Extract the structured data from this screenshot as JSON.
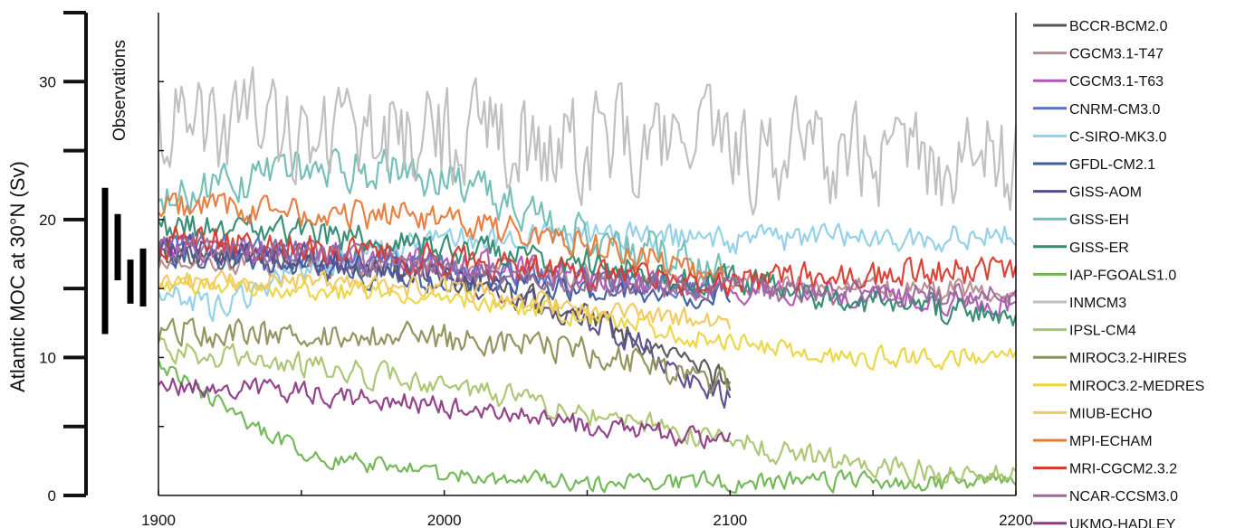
{
  "chart_data": {
    "type": "line",
    "ylabel": "Atlantic MOC at 30°N (Sv)",
    "xlim": [
      1900,
      2200
    ],
    "ylim": [
      0,
      35
    ],
    "x_ticks": [
      "1900",
      "2000",
      "2100",
      "2200"
    ],
    "y_ticks": [
      "0",
      "10",
      "20",
      "30"
    ],
    "grid": false,
    "legend_position": "right",
    "observations": {
      "label": "Observations",
      "bars": [
        {
          "low": 11.7,
          "high": 22.3
        },
        {
          "low": 15.6,
          "high": 20.4
        },
        {
          "low": 13.9,
          "high": 17.1
        },
        {
          "low": 13.7,
          "high": 17.9
        }
      ]
    },
    "series": [
      {
        "name": "BCCR-BCM2.0",
        "color": "#555555",
        "x": [
          1900,
          1950,
          2000,
          2050,
          2100
        ],
        "values": [
          17.5,
          17.0,
          16.0,
          13.0,
          8.0
        ],
        "noise": 0.9
      },
      {
        "name": "CGCM3.1-T47",
        "color": "#b98a8f",
        "x": [
          1900,
          1950,
          2000,
          2050,
          2100,
          2150,
          2200
        ],
        "values": [
          17.0,
          16.8,
          16.5,
          16.0,
          15.5,
          15.0,
          14.8
        ],
        "noise": 0.8
      },
      {
        "name": "CGCM3.1-T63",
        "color": "#b055b5",
        "x": [
          1900,
          1950,
          2000,
          2050,
          2100,
          2150,
          2200
        ],
        "values": [
          18.0,
          17.5,
          17.0,
          16.0,
          15.0,
          14.5,
          14.0
        ],
        "noise": 0.9
      },
      {
        "name": "CNRM-CM3.0",
        "color": "#5a6fc0",
        "x": [
          1900,
          1950,
          2000,
          2050,
          2100
        ],
        "values": [
          18.5,
          17.5,
          16.5,
          15.5,
          15.0
        ],
        "noise": 0.9
      },
      {
        "name": "C-SIRO-MK3.0",
        "color": "#8fd0e6",
        "x": [
          1900,
          1920,
          1950,
          2000,
          2050,
          2100,
          2150,
          2200
        ],
        "values": [
          15.0,
          13.5,
          16.5,
          18.5,
          19.0,
          18.5,
          18.5,
          19.0
        ],
        "noise": 0.9
      },
      {
        "name": "GFDL-CM2.1",
        "color": "#3f5c9e",
        "x": [
          1900,
          1950,
          2000,
          2050,
          2100
        ],
        "values": [
          17.5,
          16.5,
          15.5,
          15.0,
          14.5
        ],
        "noise": 0.8
      },
      {
        "name": "GISS-AOM",
        "color": "#5a4b8c",
        "x": [
          1900,
          1950,
          2000,
          2050,
          2100
        ],
        "values": [
          18.0,
          17.5,
          16.0,
          13.0,
          7.0
        ],
        "noise": 0.9
      },
      {
        "name": "GISS-EH",
        "color": "#6fbdb5",
        "x": [
          1900,
          1950,
          2000,
          2050,
          2100
        ],
        "values": [
          21.0,
          24.0,
          23.0,
          19.0,
          16.0
        ],
        "noise": 1.4
      },
      {
        "name": "GISS-ER",
        "color": "#2e8a70",
        "x": [
          1900,
          1950,
          2000,
          2050,
          2100,
          2150,
          2200
        ],
        "values": [
          19.5,
          19.0,
          18.0,
          17.0,
          15.5,
          14.0,
          13.0
        ],
        "noise": 1.0
      },
      {
        "name": "IAP-FGOALS1.0",
        "color": "#6fb552",
        "x": [
          1900,
          1950,
          2000,
          2050,
          2100,
          2150,
          2200
        ],
        "values": [
          9.5,
          3.0,
          1.5,
          1.0,
          1.0,
          1.0,
          1.0
        ],
        "noise": 0.6
      },
      {
        "name": "INMCM3",
        "color": "#bdbdbd",
        "x": [
          1900,
          1950,
          2000,
          2050,
          2100,
          2150,
          2200
        ],
        "values": [
          27.0,
          26.5,
          26.0,
          25.5,
          25.0,
          24.5,
          24.0
        ],
        "noise": 3.4
      },
      {
        "name": "IPSL-CM4",
        "color": "#a9c46e",
        "x": [
          1900,
          1950,
          2000,
          2050,
          2100,
          2150,
          2200
        ],
        "values": [
          10.5,
          9.5,
          8.0,
          6.0,
          4.0,
          2.0,
          1.5
        ],
        "noise": 0.8
      },
      {
        "name": "MIROC3.2-HIRES",
        "color": "#8f8f5a",
        "x": [
          1900,
          1950,
          2000,
          2050,
          2100
        ],
        "values": [
          12.0,
          11.5,
          11.5,
          10.5,
          8.0
        ],
        "noise": 1.0
      },
      {
        "name": "MIROC3.2-MEDRES",
        "color": "#ebd53e",
        "x": [
          1900,
          1950,
          2000,
          2050,
          2100,
          2150,
          2200
        ],
        "values": [
          15.5,
          15.0,
          14.5,
          13.0,
          11.0,
          10.0,
          10.0
        ],
        "noise": 0.7
      },
      {
        "name": "MIUB-ECHO",
        "color": "#f2c85e",
        "x": [
          1900,
          1950,
          2000,
          2050,
          2100
        ],
        "values": [
          15.5,
          15.5,
          15.0,
          13.5,
          12.5
        ],
        "noise": 0.7
      },
      {
        "name": "MPI-ECHAM",
        "color": "#e8793a",
        "x": [
          1900,
          1950,
          2000,
          2050,
          2100
        ],
        "values": [
          21.0,
          20.5,
          20.0,
          18.5,
          15.5
        ],
        "noise": 1.0
      },
      {
        "name": "MRI-CGCM2.3.2",
        "color": "#d83a2e",
        "x": [
          1900,
          1950,
          2000,
          2050,
          2100,
          2150,
          2200
        ],
        "values": [
          18.5,
          18.0,
          17.0,
          16.0,
          15.5,
          16.0,
          16.5
        ],
        "noise": 1.0
      },
      {
        "name": "NCAR-CCSM3.0",
        "color": "#9a6a9a",
        "x": [
          1900,
          1950,
          2000,
          2050,
          2100,
          2150,
          2200
        ],
        "values": [
          18.0,
          17.5,
          16.5,
          15.5,
          15.0,
          14.5,
          14.5
        ],
        "noise": 0.8
      },
      {
        "name": "UKMO-HADLEY",
        "color": "#8e3a86",
        "x": [
          1900,
          1950,
          2000,
          2050,
          2100
        ],
        "values": [
          8.0,
          7.5,
          6.5,
          5.0,
          4.0
        ],
        "noise": 0.7
      }
    ]
  }
}
